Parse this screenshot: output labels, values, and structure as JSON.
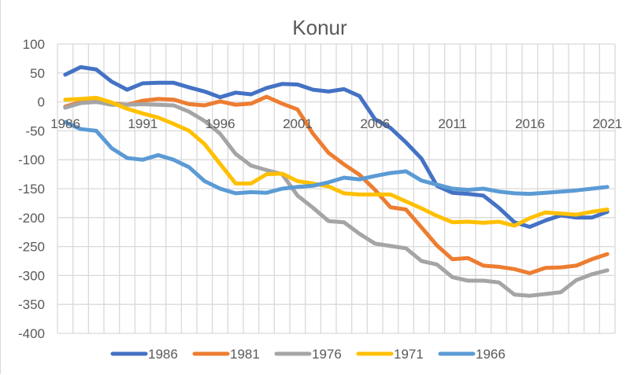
{
  "chart_data": {
    "type": "line",
    "title": "Konur",
    "xlabel": "",
    "ylabel": "",
    "ylim": [
      -400,
      100
    ],
    "yticks": [
      100,
      50,
      0,
      -50,
      -100,
      -150,
      -200,
      -250,
      -300,
      -350,
      -400
    ],
    "x": [
      1986,
      1987,
      1988,
      1989,
      1990,
      1991,
      1992,
      1993,
      1994,
      1995,
      1996,
      1997,
      1998,
      1999,
      2000,
      2001,
      2002,
      2003,
      2004,
      2005,
      2006,
      2007,
      2008,
      2009,
      2010,
      2011,
      2012,
      2013,
      2014,
      2015,
      2016,
      2017,
      2018,
      2019,
      2020,
      2021
    ],
    "xtick_labels": [
      "1986",
      "1991",
      "1996",
      "2001",
      "2006",
      "2011",
      "2016",
      "2021"
    ],
    "xtick_years": [
      1986,
      1991,
      1996,
      2001,
      2006,
      2011,
      2016,
      2021
    ],
    "grid": true,
    "legend_position": "bottom",
    "series": [
      {
        "name": "1986",
        "color": "#4472C4",
        "values": [
          47,
          60,
          56,
          35,
          21,
          32,
          33,
          33,
          25,
          18,
          8,
          16,
          13,
          24,
          31,
          30,
          21,
          18,
          22,
          10,
          -30,
          -45,
          -70,
          -98,
          -145,
          -157,
          -159,
          -162,
          -183,
          -208,
          -216,
          -205,
          -196,
          -200,
          -200,
          -190
        ]
      },
      {
        "name": "1981",
        "color": "#ED7D31",
        "values": [
          -8,
          0,
          0,
          -3,
          -5,
          2,
          5,
          4,
          -4,
          -6,
          1,
          -5,
          -3,
          9,
          -3,
          -13,
          -55,
          -88,
          -108,
          -126,
          -152,
          -182,
          -186,
          -217,
          -248,
          -272,
          -270,
          -283,
          -285,
          -289,
          -296,
          -287,
          -286,
          -283,
          -272,
          -263
        ]
      },
      {
        "name": "1976",
        "color": "#A5A5A5",
        "values": [
          -10,
          -2,
          0,
          -5,
          -5,
          -4,
          -5,
          -6,
          -17,
          -33,
          -55,
          -90,
          -110,
          -118,
          -125,
          -162,
          -183,
          -206,
          -208,
          -228,
          -245,
          -249,
          -253,
          -275,
          -281,
          -303,
          -309,
          -309,
          -312,
          -333,
          -335,
          -332,
          -329,
          -308,
          -298,
          -291
        ]
      },
      {
        "name": "1971",
        "color": "#FFC000",
        "values": [
          4,
          5,
          7,
          -1,
          -12,
          -20,
          -27,
          -38,
          -50,
          -73,
          -107,
          -141,
          -141,
          -125,
          -124,
          -137,
          -141,
          -146,
          -158,
          -160,
          -160,
          -160,
          -172,
          -184,
          -197,
          -208,
          -207,
          -209,
          -207,
          -214,
          -201,
          -191,
          -193,
          -195,
          -190,
          -186
        ]
      },
      {
        "name": "1966",
        "color": "#5B9BD5",
        "values": [
          -35,
          -47,
          -50,
          -80,
          -97,
          -100,
          -92,
          -100,
          -113,
          -137,
          -150,
          -158,
          -156,
          -157,
          -150,
          -147,
          -145,
          -139,
          -131,
          -134,
          -128,
          -123,
          -120,
          -136,
          -143,
          -150,
          -152,
          -150,
          -155,
          -158,
          -159,
          -157,
          -155,
          -153,
          -150,
          -147
        ]
      }
    ]
  }
}
